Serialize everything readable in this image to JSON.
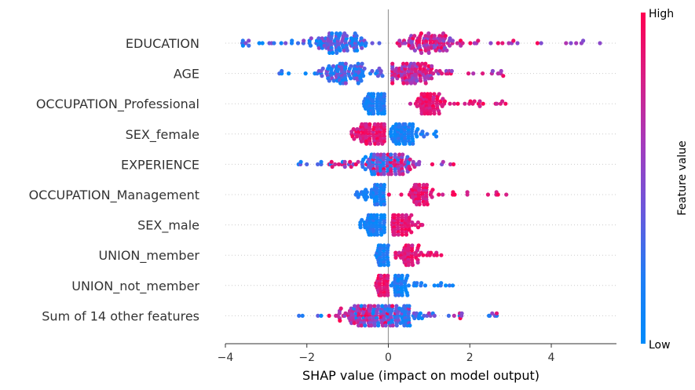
{
  "chart_data": {
    "type": "scatter",
    "subtype": "shap-beeswarm",
    "xlabel": "SHAP value (impact on model output)",
    "xlim": [
      -4,
      5.6
    ],
    "xticks": [
      -4,
      -2,
      0,
      2,
      4
    ],
    "xtick_labels": [
      "−4",
      "−2",
      "0",
      "2",
      "4"
    ],
    "features": [
      {
        "name": "EDUCATION",
        "low_range": [
          -3.6,
          -0.2
        ],
        "high_range": [
          0.2,
          5.2
        ],
        "low_center": -1.2,
        "high_center": 1.0,
        "spread": 0.8
      },
      {
        "name": "AGE",
        "low_range": [
          -2.7,
          0.4
        ],
        "high_range": [
          0.1,
          3.0
        ],
        "low_center": -1.0,
        "high_center": 0.5,
        "spread": 0.75
      },
      {
        "name": "OCCUPATION_Professional",
        "low_range": [
          -0.6,
          -0.1
        ],
        "high_range": [
          0.5,
          2.9
        ],
        "low_center": -0.3,
        "high_center": 1.0,
        "spread": 0.3
      },
      {
        "name": "SEX_female",
        "low_range": [
          0.0,
          1.2
        ],
        "high_range": [
          -0.9,
          -0.1
        ],
        "low_center": 0.4,
        "high_center": -0.4,
        "spread": 0.4
      },
      {
        "name": "EXPERIENCE",
        "low_range": [
          -2.3,
          0.8
        ],
        "high_range": [
          -1.5,
          1.7
        ],
        "low_center": -0.1,
        "high_center": 0.1,
        "spread": 0.55
      },
      {
        "name": "OCCUPATION_Management",
        "low_range": [
          -0.8,
          -0.1
        ],
        "high_range": [
          0.0,
          3.1
        ],
        "low_center": -0.2,
        "high_center": 0.8,
        "spread": 0.25
      },
      {
        "name": "SEX_male",
        "low_range": [
          -0.7,
          -0.1
        ],
        "high_range": [
          0.1,
          0.9
        ],
        "low_center": -0.3,
        "high_center": 0.3,
        "spread": 0.3
      },
      {
        "name": "UNION_member",
        "low_range": [
          -0.3,
          0.0
        ],
        "high_range": [
          0.1,
          1.6
        ],
        "low_center": -0.1,
        "high_center": 0.5,
        "spread": 0.2
      },
      {
        "name": "UNION_not_member",
        "low_range": [
          0.0,
          1.6
        ],
        "high_range": [
          -0.3,
          0.0
        ],
        "low_center": 0.3,
        "high_center": -0.1,
        "spread": 0.2
      },
      {
        "name": "Sum of 14 other features",
        "low_range": [
          -2.5,
          3.0
        ],
        "high_range": [
          -1.5,
          2.8
        ],
        "low_center": 0.1,
        "high_center": -0.5,
        "spread": 0.8
      }
    ],
    "colorbar": {
      "title": "Feature value",
      "high_label": "High",
      "low_label": "Low",
      "high_color": "#ff0051",
      "low_color": "#008bfb"
    },
    "zero_line": 0,
    "grid": false
  }
}
